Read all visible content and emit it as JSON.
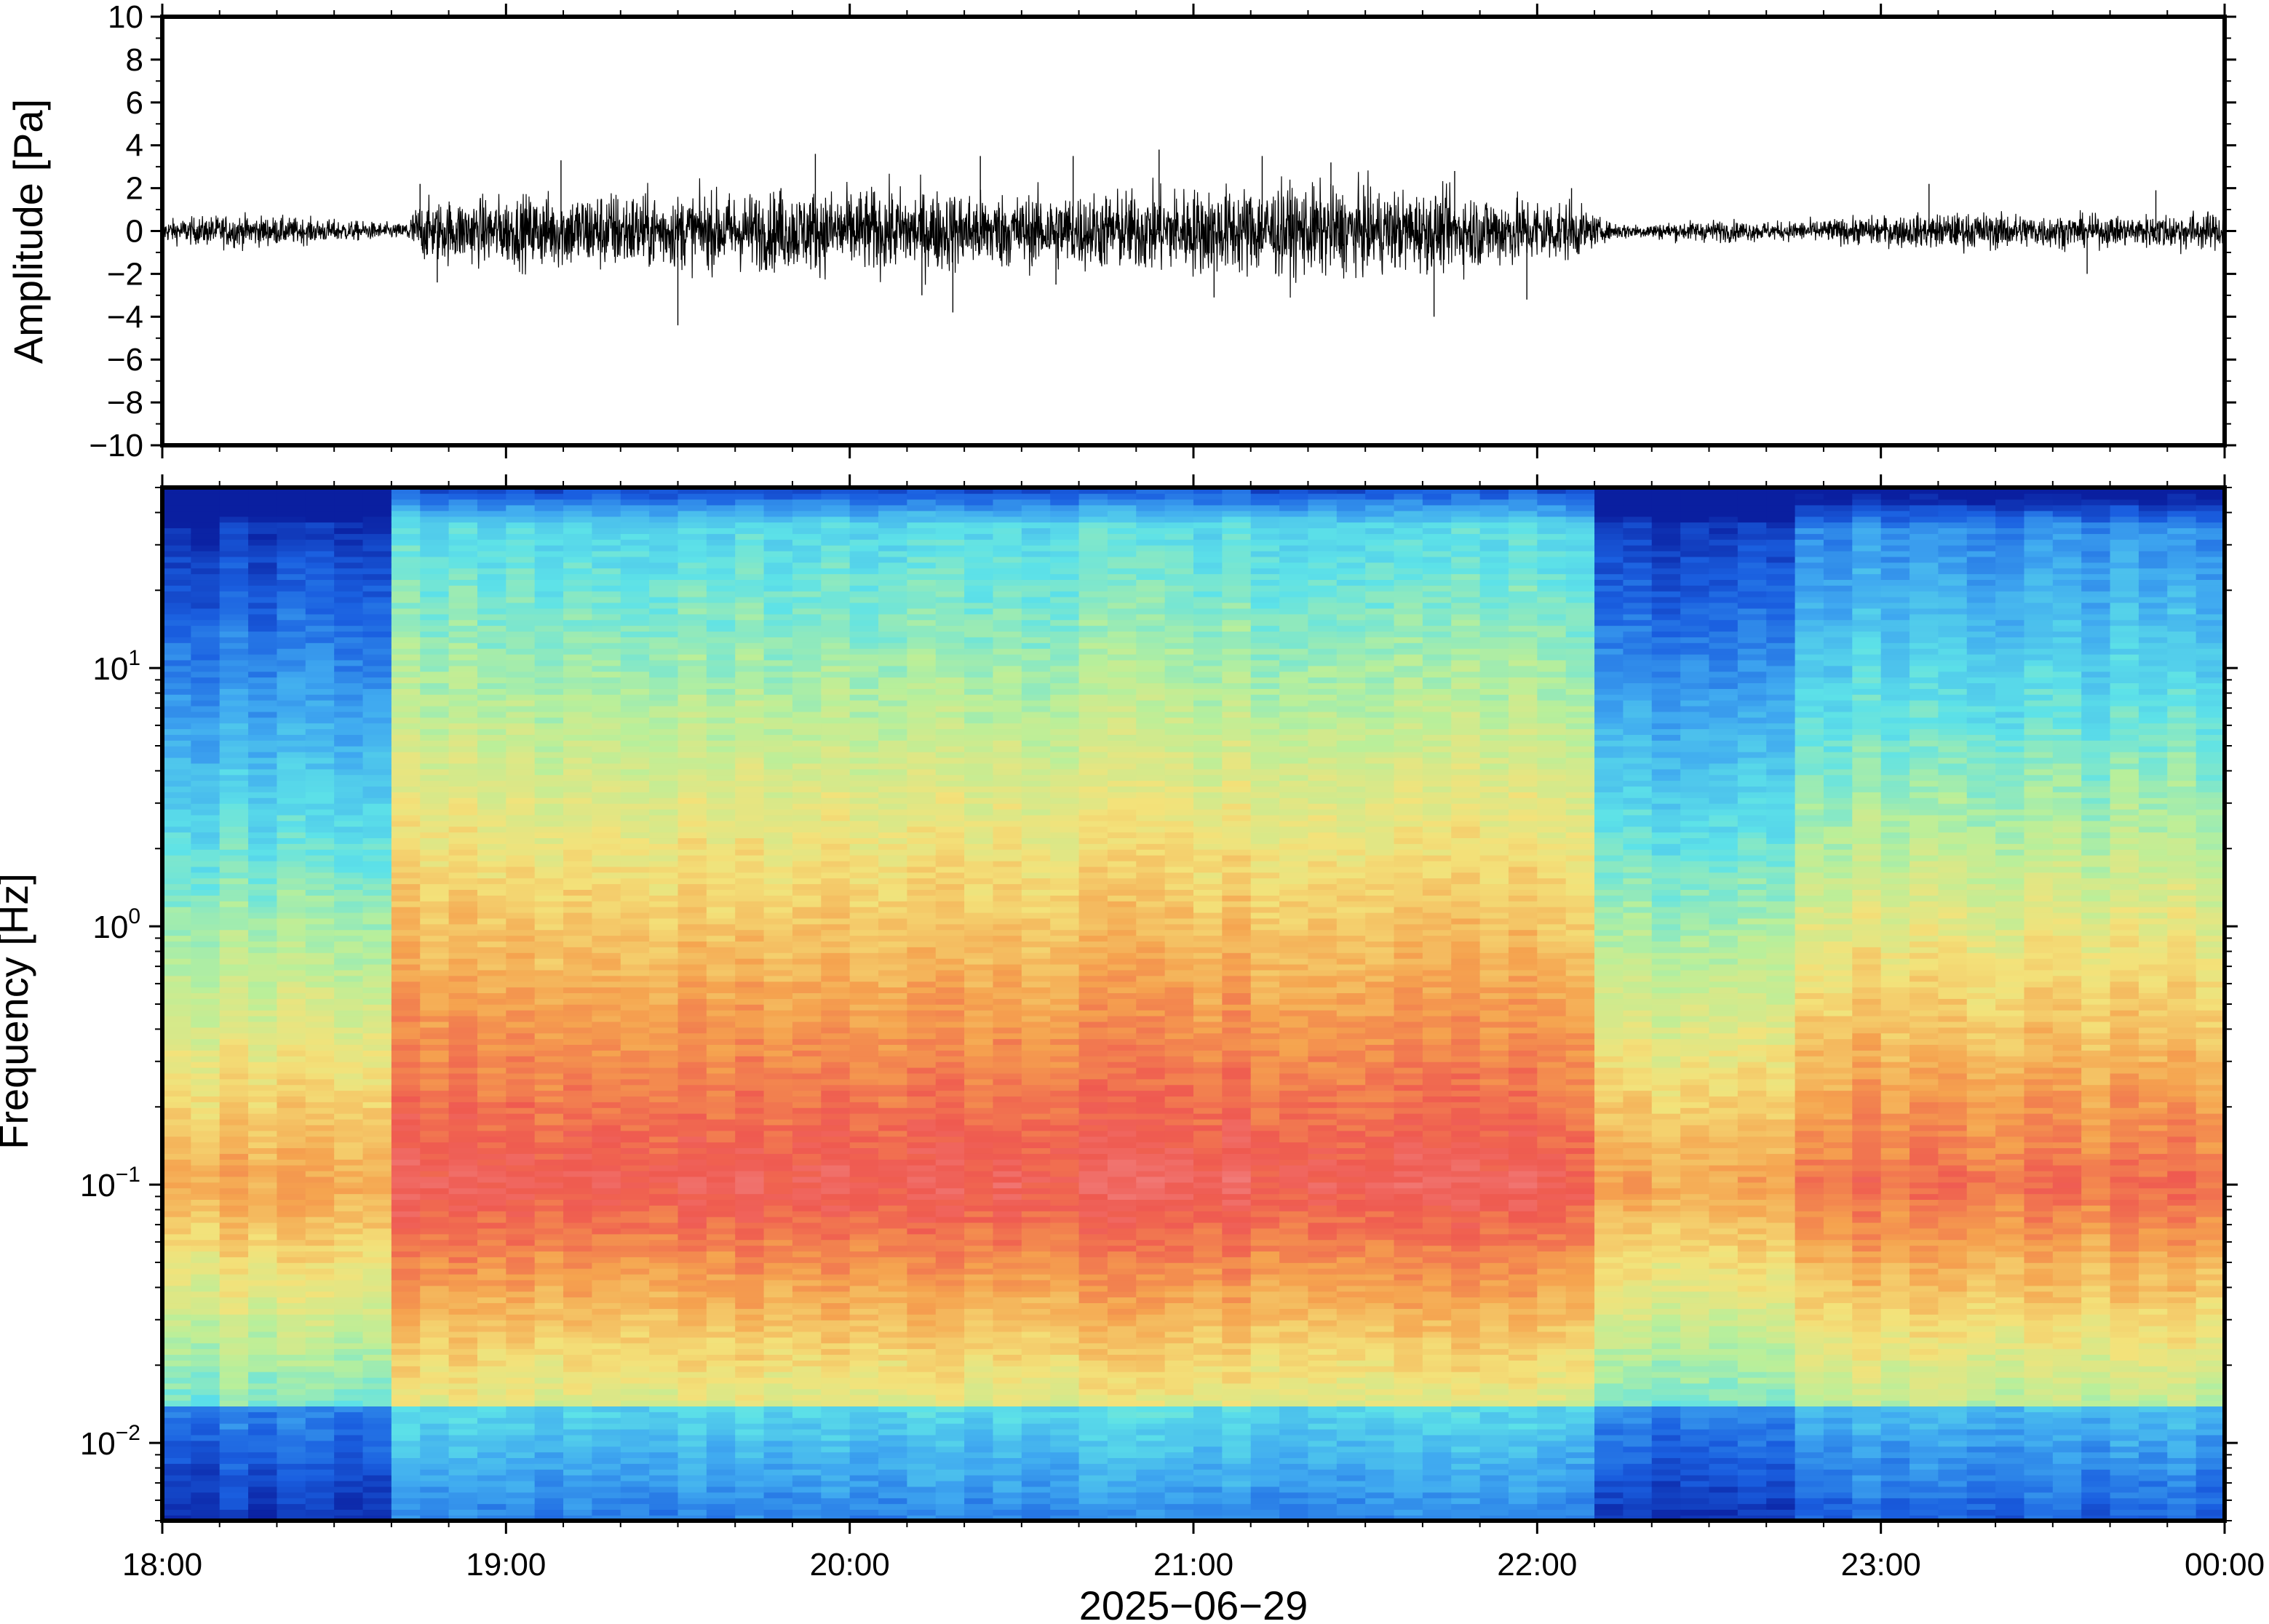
{
  "chart_data": [
    {
      "panel": "waveform",
      "type": "line",
      "ylabel": "Amplitude [Pa]",
      "ylim": [
        -10,
        10
      ],
      "yticks": [
        -10,
        -8,
        -6,
        -4,
        -2,
        0,
        2,
        4,
        6,
        8,
        10
      ],
      "ytick_labels": [
        "−10",
        "−8",
        "−6",
        "−4",
        "−2",
        "0",
        "2",
        "4",
        "6",
        "8",
        "10"
      ],
      "x_range_hours": [
        18,
        24
      ],
      "series": [
        {
          "color": "#000000",
          "envelope_x_hours": [
            18.0,
            18.2,
            18.4,
            18.6,
            18.7,
            18.75,
            18.9,
            19.1,
            19.3,
            19.5,
            19.7,
            19.9,
            20.1,
            20.3,
            20.5,
            20.7,
            20.9,
            21.1,
            21.3,
            21.5,
            21.7,
            21.9,
            22.1,
            22.2,
            22.3,
            22.5,
            22.7,
            22.9,
            23.1,
            23.3,
            23.5,
            23.7,
            23.9,
            24.0
          ],
          "envelope_amplitude_pa": [
            0.6,
            0.9,
            0.7,
            0.5,
            0.4,
            1.6,
            1.8,
            2.0,
            2.2,
            2.0,
            2.1,
            2.2,
            2.3,
            2.2,
            2.0,
            2.1,
            2.3,
            2.4,
            2.5,
            2.3,
            2.1,
            2.0,
            1.6,
            0.5,
            0.4,
            0.6,
            0.5,
            0.7,
            0.9,
            1.0,
            0.9,
            0.8,
            1.1,
            0.9
          ],
          "peaks": [
            {
              "x_hours": 18.75,
              "value": 2.2
            },
            {
              "x_hours": 18.8,
              "value": -2.4
            },
            {
              "x_hours": 19.16,
              "value": 3.3
            },
            {
              "x_hours": 19.5,
              "value": -4.4
            },
            {
              "x_hours": 19.8,
              "value": 2.0
            },
            {
              "x_hours": 19.9,
              "value": 3.6
            },
            {
              "x_hours": 20.21,
              "value": -3.0
            },
            {
              "x_hours": 20.3,
              "value": -3.8
            },
            {
              "x_hours": 20.38,
              "value": 3.5
            },
            {
              "x_hours": 20.6,
              "value": -2.5
            },
            {
              "x_hours": 20.65,
              "value": 3.5
            },
            {
              "x_hours": 20.9,
              "value": 3.8
            },
            {
              "x_hours": 21.06,
              "value": -3.1
            },
            {
              "x_hours": 21.2,
              "value": 3.5
            },
            {
              "x_hours": 21.4,
              "value": 3.2
            },
            {
              "x_hours": 21.7,
              "value": -4.0
            },
            {
              "x_hours": 21.76,
              "value": 2.8
            },
            {
              "x_hours": 21.97,
              "value": -3.2
            },
            {
              "x_hours": 22.1,
              "value": 2.0
            },
            {
              "x_hours": 23.14,
              "value": 2.2
            },
            {
              "x_hours": 23.6,
              "value": -2.0
            },
            {
              "x_hours": 23.8,
              "value": 1.9
            }
          ]
        }
      ]
    },
    {
      "panel": "spectrogram",
      "type": "heatmap",
      "ylabel": "Frequency [Hz]",
      "yscale": "log",
      "ylim_hz": [
        0.005,
        50
      ],
      "ytick_label_bases": [
        "10",
        "10",
        "10",
        "10"
      ],
      "ytick_label_exponents": [
        "−2",
        "−1",
        "0",
        "1"
      ],
      "yticks_hz": [
        0.01,
        0.1,
        1,
        10
      ],
      "xlabel": "2025−06−29",
      "xticks_hours": [
        18,
        19,
        20,
        21,
        22,
        23,
        24
      ],
      "xtick_labels": [
        "18:00",
        "19:00",
        "20:00",
        "21:00",
        "22:00",
        "23:00",
        "00:00"
      ],
      "colormap": [
        "#0a1fa0",
        "#1a5fe0",
        "#3fa8f0",
        "#5de2e8",
        "#b9ef9a",
        "#f3e27a",
        "#f5a34f",
        "#ef5a50",
        "#f28a8a"
      ],
      "time_intervals_hours": [
        {
          "start": 18.0,
          "end": 18.7,
          "level": "quiet"
        },
        {
          "start": 18.7,
          "end": 22.2,
          "level": "active"
        },
        {
          "start": 22.2,
          "end": 22.75,
          "level": "quiet"
        },
        {
          "start": 22.75,
          "end": 24.0,
          "level": "moderate"
        }
      ],
      "peak_power_band_hz": [
        0.05,
        0.2
      ]
    }
  ]
}
